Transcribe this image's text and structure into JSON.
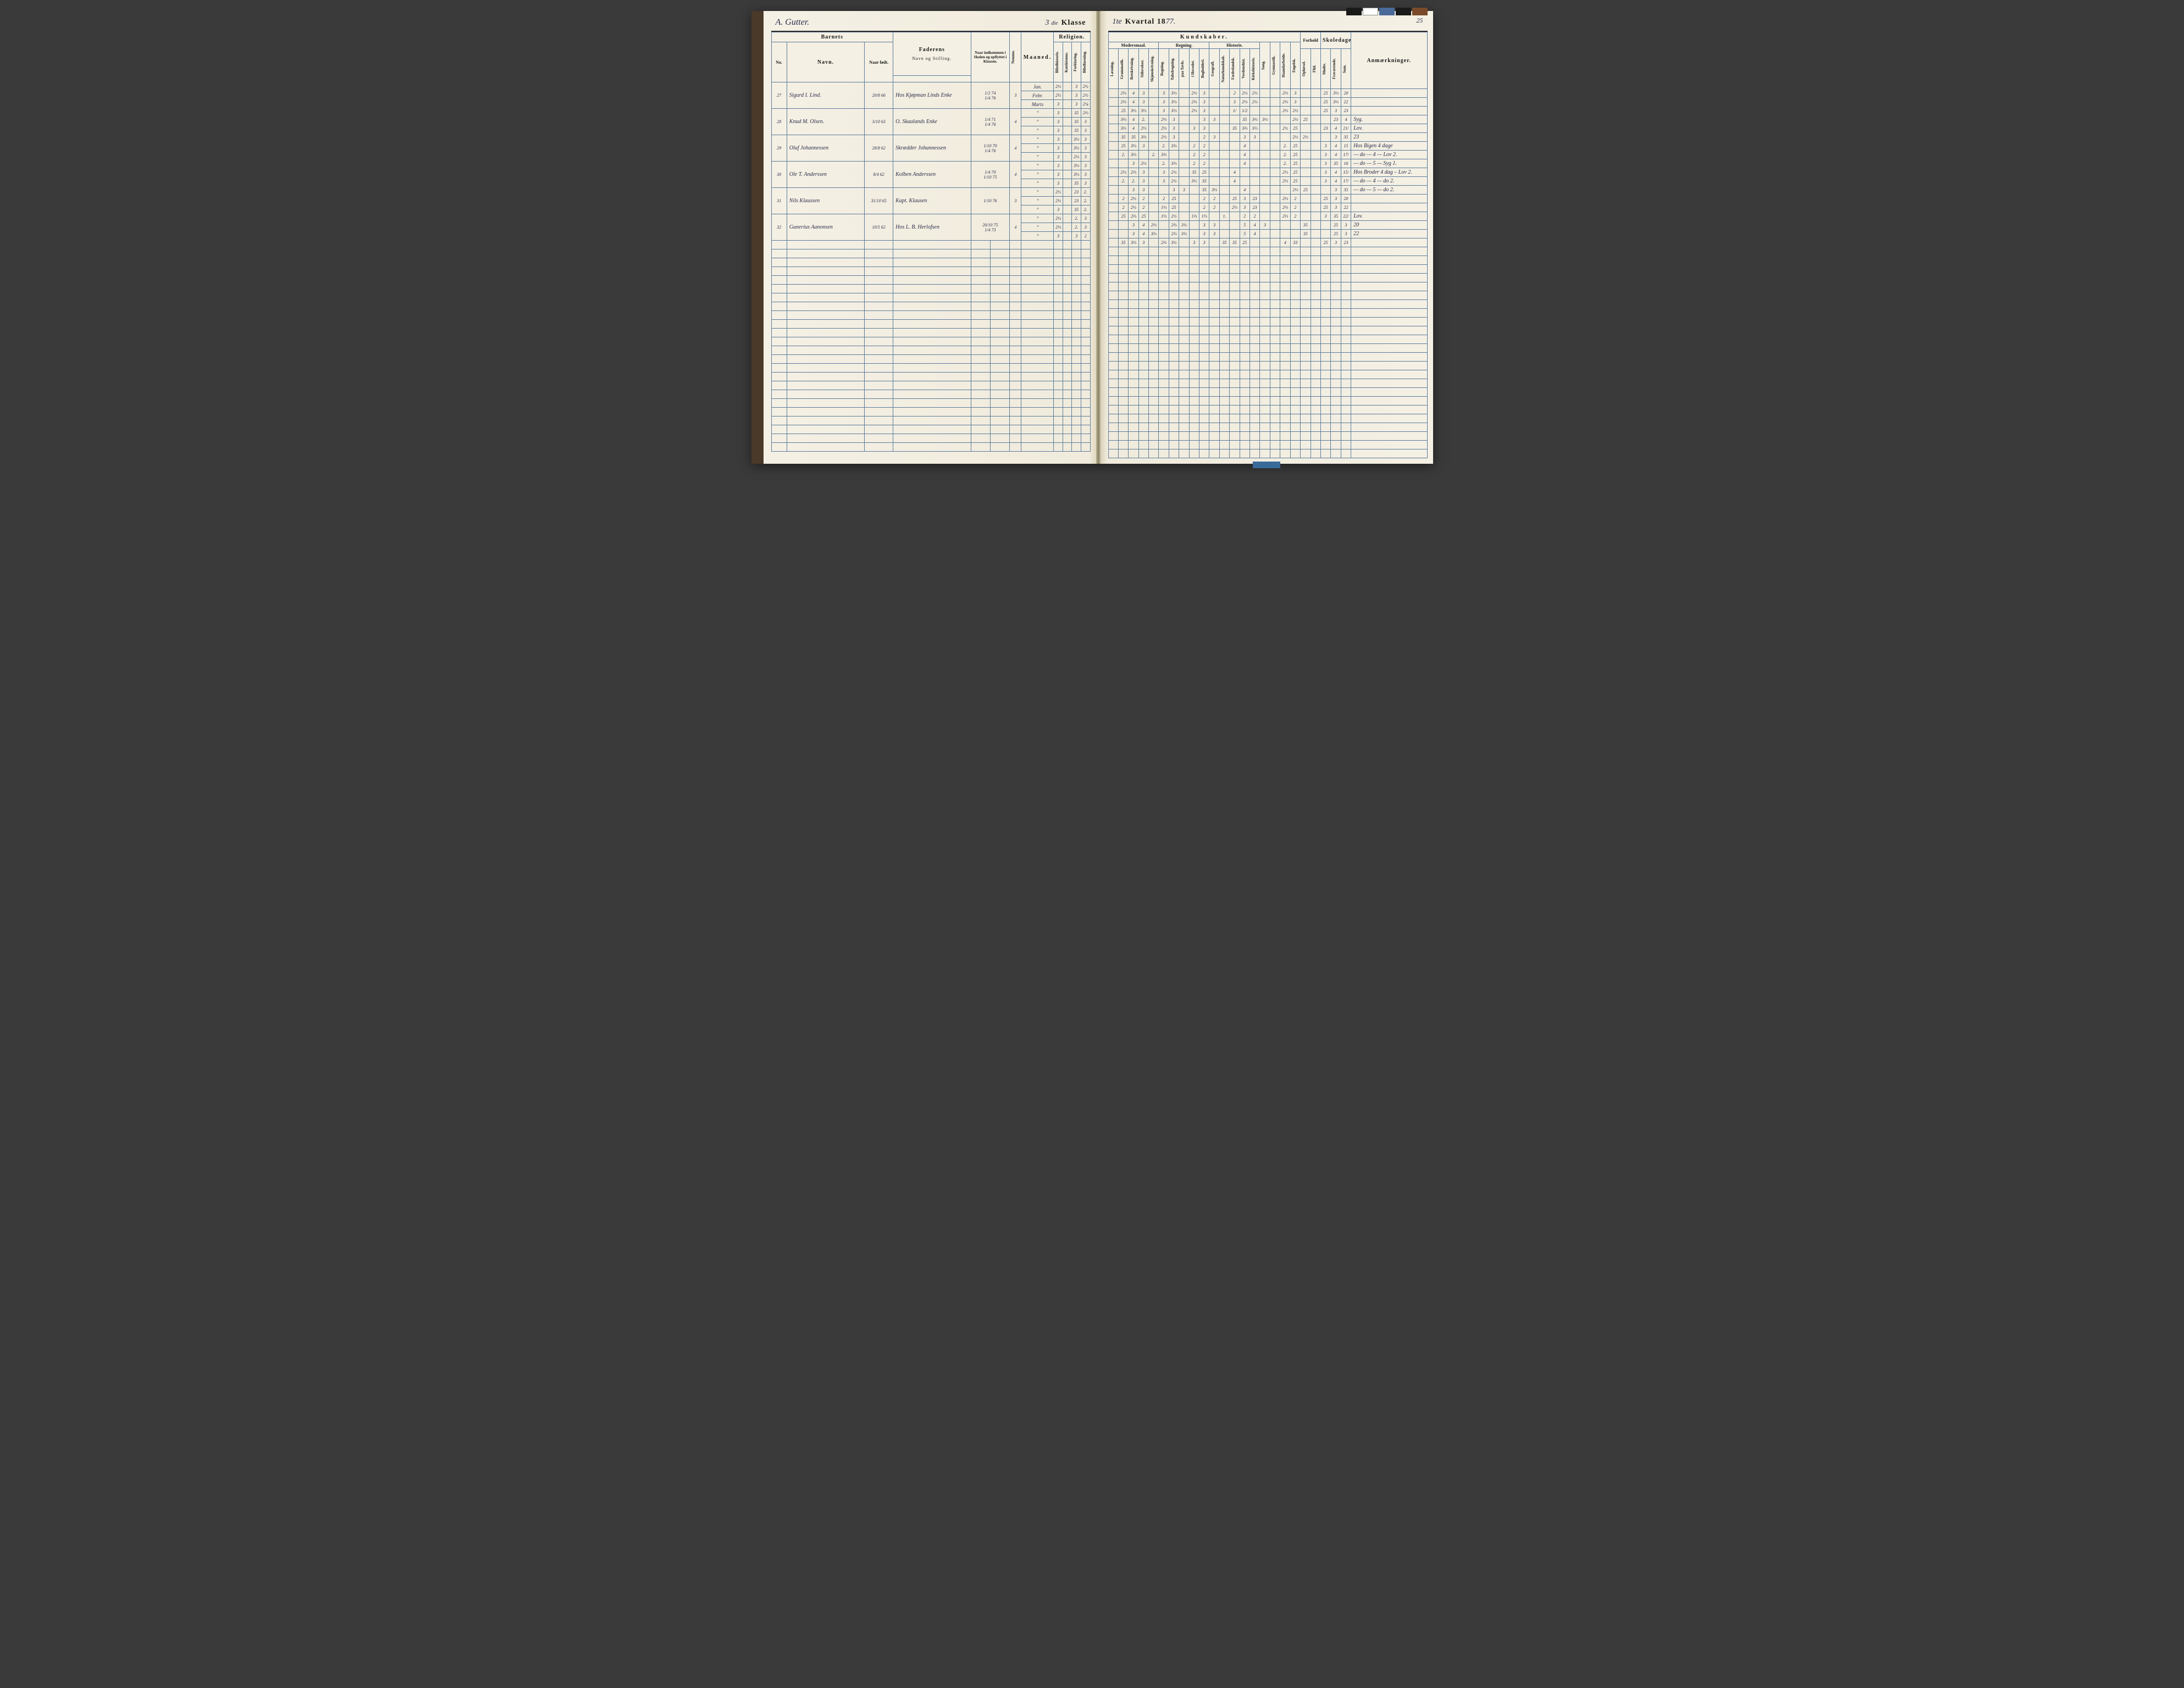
{
  "pageNumber": "25",
  "header": {
    "left_script": "A. Gutter.",
    "class_num": "3",
    "class_suffix": "die",
    "class_label": "Klasse",
    "quarter_num": "1te",
    "quarter_label": "Kvartal 18",
    "year_suffix": "77."
  },
  "colors": {
    "paper": "#f4f0e4",
    "rule": "#5a7a9a",
    "ink_print": "#1a1a1a",
    "ink_hand": "#2a2a4a",
    "spine": "#4a3828"
  },
  "tabs": [
    "#1a1a1a",
    "#ffffff",
    "#4a6a9a",
    "#1a1a1a",
    "#7a4a2a"
  ],
  "headers_left": {
    "barnets": "Barnets",
    "no": "No.",
    "navn": "Navn.",
    "naar_fodt": "Naar født.",
    "faderens": "Faderens",
    "faderens_sub": "Navn og Stilling.",
    "naar_ind": "Naar indkommen i Skolen og opflyttet i Klassen.",
    "nemme": "Nemme.",
    "maaned": "Maaned."
  },
  "headers_right": {
    "kundskaber": "Kundskaber.",
    "religion": "Religion.",
    "modersmaal": "Modersmaal.",
    "regning": "Regning.",
    "historie": "Historie.",
    "forhold": "Forhold",
    "skoledage": "Skoledage.",
    "anm": "Anmærkninger.",
    "subcols": [
      "Bibelhistorie.",
      "Katekismus.",
      "Forklaring.",
      "Bibellæsning.",
      "Læsning.",
      "Grammatik.",
      "Retskrivning.",
      "Stilovelser.",
      "Skjønskrivning.",
      "Regning.",
      "Tabelregning.",
      "paa Tavle.",
      "i Hovedet.",
      "Bogholderi.",
      "Geografi.",
      "Naturkundskab.",
      "Fædrelandsk.",
      "Verdenshist.",
      "Kirkehistorie.",
      "Sang.",
      "Gymnastik.",
      "Haandarbeide.",
      "Engelsk.",
      "Opførsel.",
      "Flid.",
      "Mødte.",
      "Fraværende.",
      "Sum."
    ]
  },
  "students": [
    {
      "no": "27",
      "navn": "Sigurd I. Lind.",
      "fodt": "20/8 66",
      "fader": "Hos Kjøpman Linds Enke",
      "indk": [
        "1/2 74",
        "1/4 76"
      ],
      "nemme": "3",
      "rows": [
        {
          "m": "Jan.",
          "g": [
            "2½",
            "",
            "3",
            "2½",
            "",
            "2⅔",
            "4",
            "3",
            "",
            "3",
            "3⅓",
            "",
            "2½",
            "3",
            "",
            "",
            "2",
            "2⅓",
            "2⅓",
            "",
            "",
            "2⅔",
            "3",
            "",
            "",
            "25",
            "3⅓",
            "20",
            "",
            "20"
          ]
        },
        {
          "m": "Febr.",
          "g": [
            "2½",
            "",
            "3",
            "2½",
            "",
            "2⅔",
            "4",
            "3",
            "",
            "3",
            "3⅓",
            "",
            "2⅔",
            "3",
            "",
            "",
            "3",
            "2⅓",
            "2⅓",
            "",
            "",
            "2⅔",
            "3",
            "",
            "",
            "25",
            "3⅓",
            "22",
            "",
            "22"
          ]
        },
        {
          "m": "Marts",
          "g": [
            "3",
            "",
            "3",
            "2¼",
            "",
            "25",
            "3⅓",
            "3⅓",
            "",
            "3",
            "3⅓",
            "",
            "2⅓",
            "3",
            "",
            "",
            "1/",
            "1/2",
            "",
            "",
            "",
            "2⅔",
            "2½",
            "",
            "",
            "25",
            "3",
            "23",
            "",
            "23"
          ]
        }
      ]
    },
    {
      "no": "28",
      "navn": "Knud M. Olsen.",
      "fodt": "3/10 63",
      "fader": "O. Skaalands Enke",
      "indk": [
        "1/4 71",
        "1/4 76"
      ],
      "nemme": "4",
      "rows": [
        {
          "m": "\"",
          "g": [
            "3",
            "",
            "35",
            "2⅔",
            "",
            "3⅔",
            "4",
            "2.",
            "",
            "2⅓",
            "3",
            "",
            "",
            "3",
            "3",
            "",
            "",
            "35",
            "3⅔",
            "3⅓",
            "",
            "",
            "2½",
            "25",
            "",
            "",
            "23",
            "4",
            "1/",
            "3",
            "20",
            "Syg."
          ]
        },
        {
          "m": "\"",
          "g": [
            "3",
            "",
            "35",
            "3",
            "",
            "3⅓",
            "4",
            "2⅓",
            "",
            "2⅓",
            "3",
            "",
            "3",
            "3",
            "",
            "",
            "35",
            "3⅔",
            "3⅓",
            "",
            "",
            "2½",
            "25",
            "",
            "",
            "23",
            "4",
            "21/",
            "2",
            "22",
            "Lov."
          ]
        },
        {
          "m": "\"",
          "g": [
            "3",
            "",
            "35",
            "3",
            "",
            "35",
            "35",
            "3⅔",
            "",
            "2⅓",
            "3",
            "",
            "",
            "2",
            "3",
            "",
            "",
            "3",
            "3",
            "",
            "",
            "",
            "2½",
            "2½",
            "",
            "",
            "3",
            "35",
            "23",
            "",
            "23"
          ]
        }
      ]
    },
    {
      "no": "29",
      "navn": "Oluf Johannessen",
      "fodt": "28/8 62",
      "fader": "Skrædder Johannessen",
      "indk": [
        "1/10 70",
        "1/4 76"
      ],
      "nemme": "4",
      "rows": [
        {
          "m": "\"",
          "g": [
            "3",
            "",
            "3½",
            "3",
            "",
            "25",
            "3⅓",
            "3",
            "",
            "2.",
            "3⅔",
            "",
            "2",
            "2",
            "",
            "",
            "",
            "4",
            "",
            "",
            "",
            "2.",
            "25",
            "",
            "",
            "3",
            "4",
            "15",
            "5",
            "20",
            "Hos Bigen 4 dage"
          ]
        },
        {
          "m": "\"",
          "g": [
            "3",
            "",
            "3½",
            "3",
            "",
            "2.",
            "3⅔",
            "",
            "2.",
            "3⅔",
            "",
            "",
            "2",
            "2",
            "",
            "",
            "",
            "4",
            "",
            "",
            "",
            "2.",
            "25",
            "",
            "",
            "3",
            "4",
            "17/",
            "4/",
            "22",
            "— do — 4 — Lov 2."
          ]
        },
        {
          "m": "\"",
          "g": [
            "3",
            "",
            "2⅓",
            "3",
            "",
            "",
            "3",
            "2⅓",
            "",
            "2.",
            "3⅔",
            "",
            "2",
            "2",
            "",
            "",
            "",
            "4",
            "",
            "",
            "",
            "2.",
            "25",
            "",
            "",
            "3",
            "35",
            "16",
            "7",
            "23",
            "— do — 5 — Syg 1."
          ]
        }
      ]
    },
    {
      "no": "30",
      "navn": "Ole T. Anderssen",
      "fodt": "8/4 62",
      "fader": "Kolben Anderssen",
      "indk": [
        "1/4 70",
        "1/10 75"
      ],
      "nemme": "4",
      "rows": [
        {
          "m": "\"",
          "g": [
            "3",
            "",
            "3⅓",
            "3",
            "",
            "2⅓",
            "2⅔",
            "3",
            "",
            "3",
            "2½",
            "",
            "35",
            "25",
            "",
            "",
            "4",
            "",
            "",
            "",
            "",
            "2⅓",
            "25",
            "",
            "",
            "3",
            "4",
            "15/",
            "4/",
            "20",
            "Hos Broder 4 dag – Lov 2."
          ]
        },
        {
          "m": "\"",
          "g": [
            "3",
            "",
            "3⅓",
            "3",
            "",
            "2.",
            "2.",
            "3",
            "",
            "3",
            "2½",
            "",
            "3½",
            "35",
            "",
            "",
            "4",
            "",
            "",
            "",
            "",
            "2⅓",
            "25",
            "",
            "",
            "3",
            "4",
            "17/",
            "5/",
            "22",
            "— do — 4 — do 2."
          ]
        },
        {
          "m": "\"",
          "g": [
            "3",
            "",
            "35",
            "3",
            "",
            "",
            "3",
            "3",
            "",
            "",
            "3",
            "3",
            "",
            "35",
            "3⅓",
            "",
            "",
            "4",
            "",
            "",
            "",
            "",
            "2⅓",
            "25",
            "",
            "",
            "3",
            "35",
            "15/",
            "4/",
            "23",
            "— do — 5 — do 2."
          ]
        }
      ]
    },
    {
      "no": "31",
      "navn": "Nils Klaussen",
      "fodt": "31/10 65",
      "fader": "Kapt. Klausen",
      "indk": [
        "1/10 76"
      ],
      "nemme": "3",
      "rows": [
        {
          "m": "\"",
          "g": [
            "2½",
            "",
            "23",
            "2.",
            "",
            "2",
            "2½",
            "2",
            "",
            "2",
            "25",
            "",
            "",
            "2",
            "2",
            "",
            "25",
            "3",
            "23",
            "",
            "",
            "2⅔",
            "2",
            "",
            "",
            "25",
            "3",
            "20",
            "",
            "20"
          ]
        },
        {
          "m": "\"",
          "g": [
            "2½",
            "",
            "23",
            "2.",
            "",
            "2",
            "2½",
            "2",
            "",
            "1⅓",
            "25",
            "",
            "",
            "2",
            "2",
            "",
            "2⅓",
            "3",
            "23",
            "",
            "",
            "2⅔",
            "2",
            "",
            "",
            "25",
            "3",
            "22",
            "",
            "22"
          ]
        },
        {
          "m": "\"",
          "g": [
            "3",
            "",
            "35",
            "2.",
            "",
            "25",
            "2⅔",
            "25",
            "",
            "1⅓",
            "2½",
            "",
            "1⅔",
            "1⅓",
            "",
            "1.",
            "",
            "2",
            "2",
            "",
            "",
            "2⅔",
            "2",
            "",
            "",
            "3",
            "35",
            "22/",
            "1/",
            "23",
            "Lov."
          ]
        }
      ]
    },
    {
      "no": "32",
      "navn": "Gunerius Aanonsen",
      "fodt": "10/5 62",
      "fader": "Hos L. B. Herlofsen",
      "indk": [
        "20/10 75",
        "1/4 73"
      ],
      "nemme": "4",
      "rows": [
        {
          "m": "\"",
          "g": [
            "2⅓",
            "",
            "2.",
            "3",
            "",
            "",
            "3",
            "4",
            "2⅔",
            "",
            "2⅔",
            "3½",
            "",
            "3",
            "3",
            "",
            "",
            "5",
            "4",
            "3",
            "",
            "",
            "",
            "35",
            "",
            "",
            "25",
            "3",
            "20",
            "",
            "20"
          ]
        },
        {
          "m": "\"",
          "g": [
            "2⅓",
            "",
            "2.",
            "3",
            "",
            "",
            "3",
            "4",
            "3⅔",
            "",
            "2⅔",
            "3½",
            "",
            "3",
            "3",
            "",
            "",
            "5",
            "4",
            "",
            "",
            "",
            "",
            "35",
            "",
            "",
            "25",
            "3",
            "22",
            "",
            "22"
          ]
        },
        {
          "m": "\"",
          "g": [
            "3",
            "",
            "3",
            "2",
            "",
            "35",
            "3⅔",
            "3",
            "",
            "2⅔",
            "3½",
            "",
            "3",
            "3",
            "",
            "35",
            "35",
            "25",
            "",
            "",
            "",
            "4",
            "33",
            "",
            "",
            "25",
            "3",
            "23",
            "",
            "23"
          ]
        }
      ]
    }
  ],
  "emptyRows": 24
}
